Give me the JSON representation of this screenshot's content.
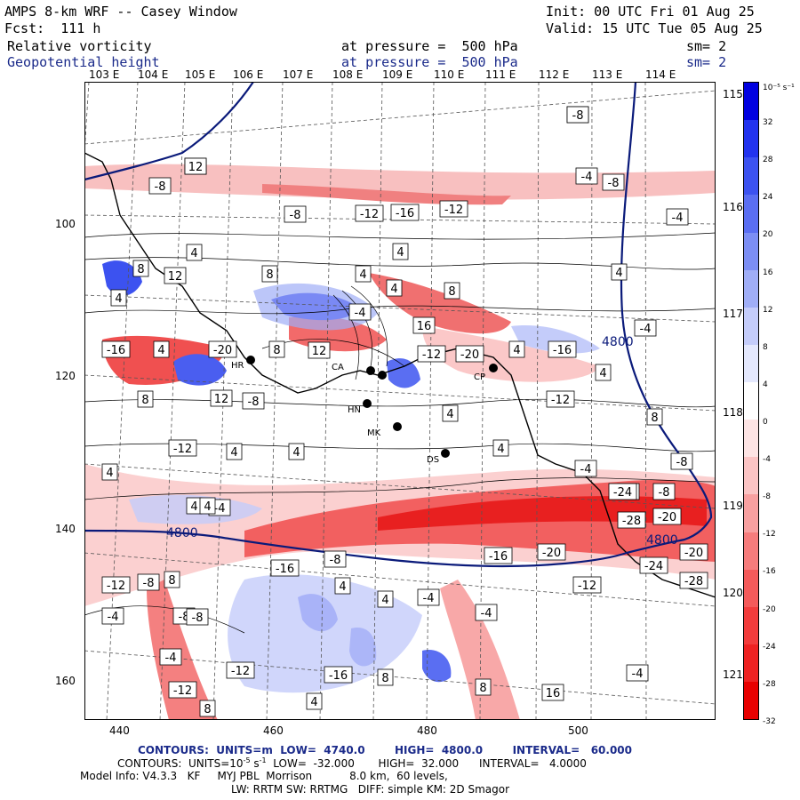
{
  "header": {
    "title": "AMPS 8-km WRF -- Casey Window",
    "fcst": "Fcst:  111 h",
    "init": "Init: 00 UTC Fri 01 Aug 25",
    "valid": "Valid: 15 UTC Tue 05 Aug 25",
    "field1_name": "Relative vorticity",
    "field1_level": "at pressure =  500 hPa",
    "field1_sm": "sm= 2",
    "field2_name": "Geopotential height",
    "field2_level": "at pressure =  500 hPa",
    "field2_sm": "sm= 2"
  },
  "map": {
    "top_lon_labels": [
      "103 E",
      "104 E",
      "105 E",
      "106 E",
      "107 E",
      "108 E",
      "109 E",
      "110 E",
      "111 E",
      "112 E",
      "113 E",
      "114 E"
    ],
    "right_lat_labels": [
      "115 E",
      "116 E",
      "117 E",
      "118 E",
      "119 E",
      "120 E",
      "121 E"
    ],
    "x_ticks": [
      "440",
      "460",
      "480",
      "500"
    ],
    "y_ticks": [
      "100",
      "120",
      "140",
      "160"
    ],
    "station_labels": [
      "HR",
      "CA",
      "HN",
      "MK",
      "DS",
      "CP"
    ],
    "height_labels": [
      "4800",
      "4800",
      "4800"
    ],
    "vorticity_contour_labels": [
      "-4",
      "-4",
      "-8",
      "-4",
      "-8",
      "-8",
      "-12",
      "-16",
      "-12",
      "-4",
      "4",
      "4",
      "4",
      "8",
      "12",
      "8",
      "4",
      "4",
      "8",
      "4",
      "-4",
      "16",
      "-4",
      "-16",
      "12",
      "4",
      "-20",
      "8",
      "4",
      "-16",
      "-20",
      "-12",
      "8",
      "12",
      "-8",
      "-12",
      "4",
      "4",
      "8",
      "-12",
      "4",
      "4",
      "4",
      "-4",
      "-8",
      "4",
      "-4",
      "-4",
      "-8",
      "4",
      "-8",
      "8",
      "4",
      "-24",
      "-20",
      "-28",
      "-8",
      "-20",
      "-16",
      "-16",
      "-20",
      "-24",
      "-28",
      "-12",
      "-4",
      "-8",
      "-4",
      "4",
      "4",
      "-4",
      "-8",
      "-4",
      "-12",
      "-12",
      "-16",
      "8",
      "8",
      "16",
      "-4",
      "8",
      "4",
      "-12",
      "-8",
      "12"
    ]
  },
  "colorbar": {
    "unit_label": "10⁻⁵ s⁻¹",
    "labels": [
      "32",
      "28",
      "24",
      "20",
      "16",
      "12",
      "8",
      "4",
      "0",
      "-4",
      "-8",
      "-12",
      "-16",
      "-20",
      "-24",
      "-28",
      "-32"
    ],
    "colors": [
      "#0000e0",
      "#2233ee",
      "#3c52f0",
      "#5a6ef2",
      "#7c8ef4",
      "#a0aef7",
      "#c4ccfa",
      "#e4e8fd",
      "#ffffff",
      "#fde4e4",
      "#fbc4c4",
      "#f8a0a0",
      "#f67c7c",
      "#f45a5a",
      "#f23c3c",
      "#ee2222",
      "#e80000"
    ]
  },
  "footer": {
    "c1_prefix": "CONTOURS:  UNITS=m  LOW=  4740.0",
    "c1_high": "HIGH=  4800.0",
    "c1_interval": "INTERVAL=   60.000",
    "c2_prefix": "CONTOURS:  UNITS=10",
    "c2_exp": "-5",
    "c2_unit": "s",
    "c2_unit_exp": "-1",
    "c2_low": "LOW=  -32.000",
    "c2_high": "HIGH=  32.000",
    "c2_interval": "INTERVAL=   4.0000",
    "model_info": "Model Info: V4.3.3   KF     MYJ PBL  Morrison           8.0 km,  60 levels,",
    "model_info2": "LW: RRTM SW: RRTMG   DIFF: simple KM: 2D Smagor"
  }
}
